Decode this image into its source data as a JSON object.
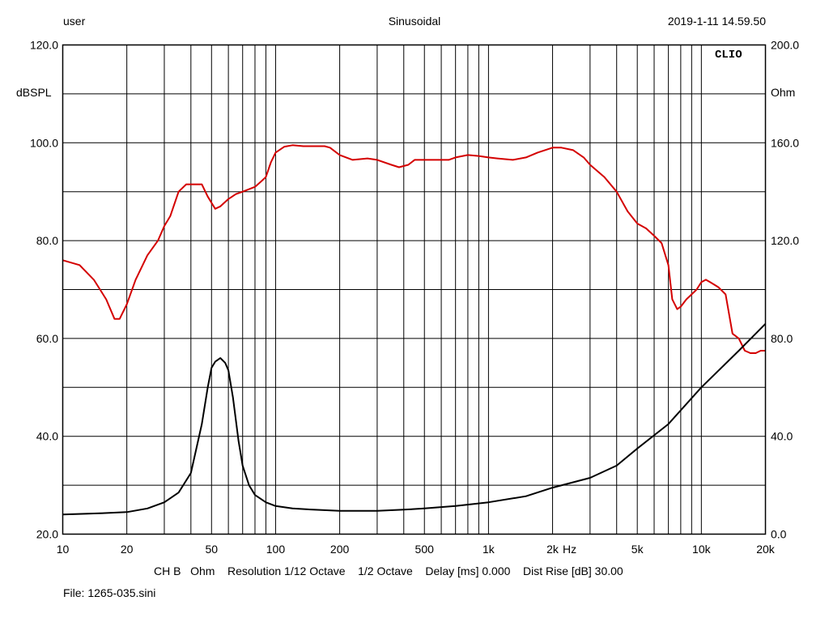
{
  "header": {
    "user": "user",
    "mode": "Sinusoidal",
    "timestamp": "2019-1-11 14.59.50"
  },
  "footer": {
    "settings": "CH B   Ohm    Resolution 1/12 Octave    1/2 Octave    Delay [ms] 0.000    Dist Rise [dB] 30.00",
    "file": "File: 1265-035.sini"
  },
  "colors": {
    "spl": "#d40000",
    "impedance": "#000000",
    "grid": "#000000",
    "background": "#ffffff"
  },
  "chart_data": {
    "type": "line",
    "brand": "CLIO",
    "x_unit": "Hz",
    "x_scale": "log",
    "xlim": [
      10,
      20000
    ],
    "x_ticks": [
      {
        "v": 10,
        "label": "10"
      },
      {
        "v": 20,
        "label": "20"
      },
      {
        "v": 50,
        "label": "50"
      },
      {
        "v": 100,
        "label": "100"
      },
      {
        "v": 200,
        "label": "200"
      },
      {
        "v": 500,
        "label": "500"
      },
      {
        "v": 1000,
        "label": "1k"
      },
      {
        "v": 2000,
        "label": "2k"
      },
      {
        "v": 5000,
        "label": "5k"
      },
      {
        "v": 10000,
        "label": "10k"
      },
      {
        "v": 20000,
        "label": "20k"
      }
    ],
    "y_left": {
      "label": "dBSPL",
      "lim": [
        20,
        120
      ],
      "ticks": [
        "20.0",
        "40.0",
        "60.0",
        "80.0",
        "100.0",
        "120.0"
      ],
      "tick_values": [
        20,
        40,
        60,
        80,
        100,
        120
      ]
    },
    "y_right": {
      "label": "Ohm",
      "lim": [
        0,
        200
      ],
      "ticks": [
        "0.0",
        "40.0",
        "80.0",
        "120.0",
        "160.0",
        "200.0"
      ],
      "tick_values": [
        0,
        40,
        80,
        120,
        160,
        200
      ]
    },
    "grid": true,
    "series": [
      {
        "axis": "left",
        "color": "#d40000",
        "x": [
          10,
          12,
          14,
          16,
          17.5,
          18.5,
          20,
          22,
          25,
          28,
          30,
          32,
          35,
          38,
          42,
          45,
          48,
          52,
          55,
          60,
          65,
          70,
          80,
          85,
          90,
          95,
          100,
          110,
          120,
          135,
          150,
          170,
          180,
          200,
          230,
          270,
          300,
          350,
          380,
          420,
          450,
          500,
          550,
          600,
          650,
          700,
          800,
          900,
          1000,
          1100,
          1300,
          1500,
          1700,
          2000,
          2200,
          2500,
          2800,
          3000,
          3500,
          4000,
          4500,
          5000,
          5500,
          6000,
          6500,
          7000,
          7300,
          7700,
          8000,
          8500,
          9000,
          9500,
          10000,
          10500,
          11000,
          12000,
          13000,
          14000,
          15000,
          16000,
          17000,
          18000,
          19000,
          20000
        ],
        "values": [
          76,
          75,
          72,
          68,
          64,
          64,
          67,
          72,
          77,
          80,
          83,
          85,
          90,
          91.5,
          91.5,
          91.5,
          89,
          86.5,
          87,
          88.5,
          89.5,
          90,
          91,
          92,
          93,
          96,
          98,
          99.2,
          99.5,
          99.3,
          99.3,
          99.3,
          99,
          97.5,
          96.5,
          96.8,
          96.5,
          95.5,
          95,
          95.5,
          96.5,
          96.5,
          96.5,
          96.5,
          96.5,
          97,
          97.5,
          97.3,
          97,
          96.8,
          96.5,
          97,
          98,
          99,
          99,
          98.5,
          97,
          95.5,
          93,
          90,
          86,
          83.5,
          82.5,
          81,
          79.5,
          75,
          68,
          66,
          66.5,
          68,
          69,
          70,
          71.5,
          72,
          71.5,
          70.5,
          69,
          61,
          60,
          57.5,
          57,
          57,
          57.5,
          57.5
        ]
      },
      {
        "axis": "right",
        "color": "#000000",
        "x": [
          10,
          15,
          20,
          25,
          30,
          35,
          40,
          45,
          48,
          50,
          52,
          55,
          58,
          60,
          63,
          67,
          70,
          75,
          80,
          90,
          100,
          120,
          150,
          200,
          300,
          400,
          500,
          700,
          1000,
          1500,
          2000,
          3000,
          4000,
          5000,
          7000,
          10000,
          15000,
          18000,
          20000
        ],
        "values": [
          8,
          8.5,
          9,
          10.5,
          13,
          17,
          25,
          45,
          60,
          68,
          70.5,
          72,
          70,
          67,
          56,
          38,
          28,
          20,
          16,
          13,
          11.5,
          10.5,
          10,
          9.5,
          9.5,
          10,
          10.5,
          11.5,
          13,
          15.5,
          19,
          23,
          28,
          35,
          45,
          60,
          75,
          82,
          86
        ]
      }
    ]
  }
}
